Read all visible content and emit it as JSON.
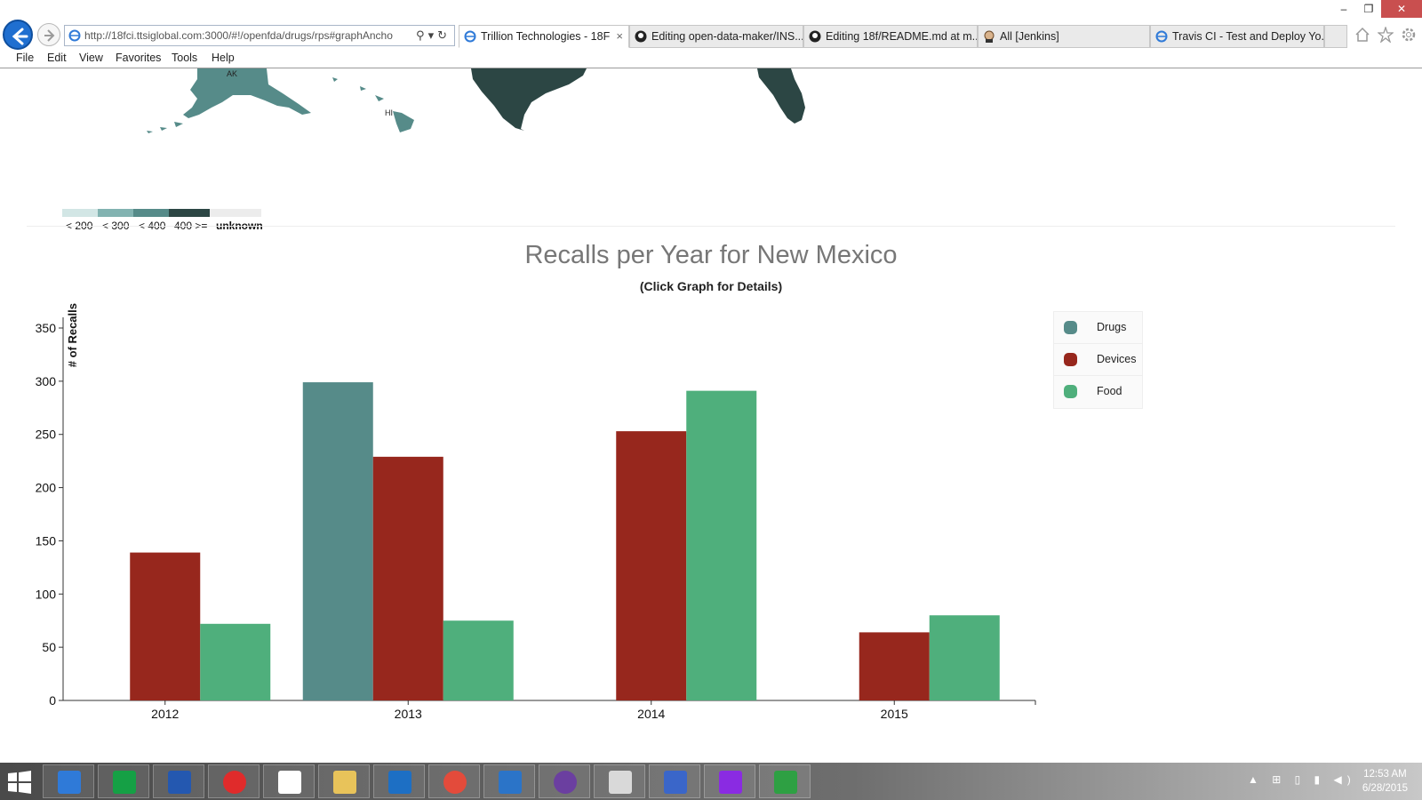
{
  "browser": {
    "address": "http://18fci.ttsiglobal.com:3000/#!/openfda/drugs/rps#graphAncho",
    "tabs": [
      {
        "label": "Trillion Technologies - 18F",
        "active": true,
        "icon": "ie-icon"
      },
      {
        "label": "Editing open-data-maker/INS...",
        "active": false,
        "icon": "github-icon"
      },
      {
        "label": "Editing 18f/README.md at m...",
        "active": false,
        "icon": "github-icon"
      },
      {
        "label": "All [Jenkins]",
        "active": false,
        "icon": "jenkins-icon"
      },
      {
        "label": "Travis CI - Test and Deploy Yo...",
        "active": false,
        "icon": "ie-icon"
      }
    ],
    "tab_close": "×",
    "menu": [
      "File",
      "Edit",
      "View",
      "Favorites",
      "Tools",
      "Help"
    ],
    "window_controls": {
      "minimize": "–",
      "restore": "❐",
      "close": "✕"
    }
  },
  "map": {
    "labels": {
      "ak": "AK",
      "hi": "HI"
    },
    "legend": [
      {
        "label": "< 200",
        "color": "#d2e6e5"
      },
      {
        "label": "< 300",
        "color": "#82b3b1"
      },
      {
        "label": "< 400",
        "color": "#568b89"
      },
      {
        "label": "400 >=",
        "color": "#2c4644"
      },
      {
        "label": "unknown",
        "color": "#ececec"
      }
    ]
  },
  "chart_data": {
    "type": "bar",
    "title": "Recalls per Year for New Mexico",
    "subtitle": "(Click Graph for Details)",
    "ylabel": "# of Recalls",
    "xlabel": "",
    "categories": [
      "2012",
      "2013",
      "2014",
      "2015"
    ],
    "ylim": [
      0,
      350
    ],
    "yticks": [
      0,
      50,
      100,
      150,
      200,
      250,
      300,
      350
    ],
    "series": [
      {
        "name": "Drugs",
        "color": "#568b89",
        "values": [
          0,
          299,
          0,
          0
        ]
      },
      {
        "name": "Devices",
        "color": "#97271d",
        "values": [
          139,
          229,
          253,
          64
        ]
      },
      {
        "name": "Food",
        "color": "#4faf7c",
        "values": [
          72,
          75,
          291,
          80
        ]
      }
    ],
    "legend_position": "top-right",
    "grid": false
  },
  "taskbar": {
    "apps": [
      "internet-explorer-icon",
      "store-icon",
      "lenovo-icon",
      "cloud-icon",
      "home-icon",
      "file-explorer-icon",
      "outlook-icon",
      "chrome-icon",
      "powershell-icon",
      "github-desktop-icon",
      "paint-icon",
      "network-icon",
      "search-app-icon",
      "project-icon"
    ],
    "tray": "▲ ⊞ ▯ ▮ ◀)",
    "time": "12:53 AM",
    "date": "6/28/2015"
  }
}
